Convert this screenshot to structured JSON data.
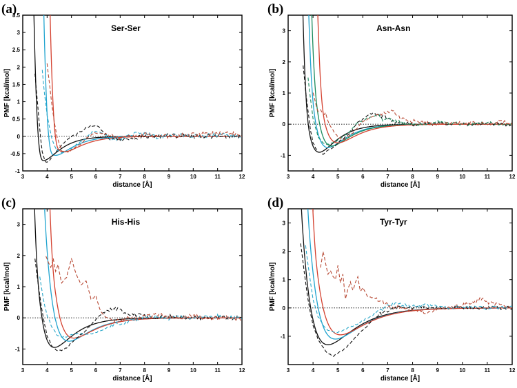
{
  "colors": {
    "black": "#111111",
    "cyan": "#1fa3cf",
    "green": "#1a8a5c",
    "red": "#d4402e",
    "dashed_red": "#b84a35",
    "dashed_cyan": "#2aa7c9",
    "dashed_black": "#111111"
  },
  "chart_data": [
    {
      "panel": "(a)",
      "title": "Ser-Ser",
      "type": "line",
      "xlabel": "distance [Å]",
      "ylabel": "PMF [kcal/mol]",
      "xlim": [
        3,
        12
      ],
      "ylim": [
        -1,
        3.5
      ],
      "xticks": [
        3,
        4,
        5,
        6,
        7,
        8,
        9,
        10,
        11,
        12
      ],
      "yticks": [
        "3.5",
        "3",
        "2.5",
        "2",
        "1.5",
        "1",
        "0.5",
        "0",
        "-0.5",
        "-1"
      ],
      "zero_line": true,
      "series": [
        {
          "name": "black model",
          "color": "black",
          "style": "solid",
          "wall": 3.45,
          "rmin": 3.85,
          "depth": 0.7,
          "width": 1.4
        },
        {
          "name": "cyan model",
          "color": "cyan",
          "style": "solid",
          "wall": 3.85,
          "rmin": 4.35,
          "depth": 0.55,
          "width": 1.5
        },
        {
          "name": "red model",
          "color": "red",
          "style": "solid",
          "wall": 4.1,
          "rmin": 4.7,
          "depth": 0.45,
          "width": 1.6
        },
        {
          "name": "black reference",
          "color": "dashed_black",
          "style": "dashed",
          "x": [
            3.5,
            3.6,
            3.7,
            3.8,
            3.9,
            4.0,
            4.2,
            4.4,
            4.6,
            4.8,
            5.0,
            5.2,
            5.4,
            5.6,
            5.8,
            6.0,
            6.2,
            6.4,
            6.6,
            6.8,
            7.0,
            7.5,
            8.0,
            9.0,
            10.0,
            11.0,
            12.0
          ],
          "y": [
            1.8,
            1.0,
            0.2,
            -0.45,
            -0.7,
            -0.75,
            -0.6,
            -0.4,
            -0.25,
            -0.1,
            0.0,
            0.05,
            0.15,
            0.25,
            0.3,
            0.32,
            0.22,
            0.05,
            -0.08,
            -0.05,
            -0.1,
            -0.05,
            0.0,
            0.02,
            0.0,
            0.0,
            0.0
          ]
        },
        {
          "name": "cyan reference",
          "color": "dashed_cyan",
          "style": "dashed",
          "x": [
            3.8,
            3.9,
            4.0,
            4.2,
            4.4,
            4.6,
            4.8,
            5.0,
            5.2,
            5.4,
            5.6,
            5.8,
            6.0,
            6.2,
            6.4,
            6.6,
            7.0,
            7.5,
            8.0,
            8.5,
            9.0,
            10.0,
            11.0,
            12.0
          ],
          "y": [
            1.9,
            1.2,
            0.6,
            -0.1,
            -0.4,
            -0.45,
            -0.4,
            -0.35,
            -0.25,
            -0.15,
            -0.05,
            0.1,
            0.15,
            0.1,
            0.05,
            -0.1,
            -0.05,
            0.05,
            0.1,
            -0.05,
            0.05,
            0.0,
            0.05,
            0.0
          ]
        },
        {
          "name": "red reference",
          "color": "dashed_red",
          "style": "dashed",
          "x": [
            4.0,
            4.1,
            4.2,
            4.3,
            4.4,
            4.5,
            4.6,
            4.8,
            5.0,
            5.2,
            5.4,
            5.6,
            5.8,
            6.0,
            6.5,
            7.0,
            7.5,
            8.0,
            9.0,
            10.0,
            11.0,
            11.5,
            12.0
          ],
          "y": [
            2.1,
            1.5,
            0.9,
            0.4,
            0.0,
            -0.2,
            -0.4,
            -0.45,
            -0.4,
            -0.3,
            -0.2,
            -0.05,
            0.05,
            0.1,
            0.05,
            -0.05,
            0.0,
            0.05,
            0.0,
            0.05,
            0.1,
            0.1,
            0.0
          ]
        }
      ]
    },
    {
      "panel": "(b)",
      "title": "Asn-Asn",
      "type": "line",
      "xlabel": "distance [Å]",
      "ylabel": "PMF [kcal/mol]",
      "xlim": [
        3,
        12
      ],
      "ylim": [
        -1.5,
        3.5
      ],
      "xticks": [
        3,
        4,
        5,
        6,
        7,
        8,
        9,
        10,
        11,
        12
      ],
      "yticks": [
        "3",
        "2",
        "1",
        "0",
        "-1"
      ],
      "zero_line": true,
      "series": [
        {
          "name": "black model",
          "color": "black",
          "style": "solid",
          "wall": 3.5,
          "rmin": 4.25,
          "depth": 0.9,
          "width": 1.5
        },
        {
          "name": "cyan model",
          "color": "cyan",
          "style": "solid",
          "wall": 3.7,
          "rmin": 4.6,
          "depth": 0.75,
          "width": 1.6
        },
        {
          "name": "green model",
          "color": "green",
          "style": "solid",
          "wall": 3.8,
          "rmin": 4.75,
          "depth": 0.7,
          "width": 1.6
        },
        {
          "name": "red model",
          "color": "red",
          "style": "solid",
          "wall": 4.1,
          "rmin": 5.0,
          "depth": 0.6,
          "width": 1.7
        },
        {
          "name": "black reference",
          "color": "dashed_black",
          "style": "dashed",
          "x": [
            3.6,
            3.7,
            3.8,
            3.9,
            4.0,
            4.2,
            4.4,
            4.6,
            4.8,
            5.0,
            5.2,
            5.4,
            5.6,
            5.8,
            6.0,
            6.2,
            6.4,
            6.6,
            6.8,
            7.0,
            7.2,
            7.5,
            8.0,
            9.0,
            10.0,
            11.0,
            12.0
          ],
          "y": [
            1.9,
            1.1,
            0.4,
            -0.2,
            -0.6,
            -0.9,
            -0.95,
            -0.85,
            -0.75,
            -0.6,
            -0.45,
            -0.35,
            -0.15,
            0.05,
            0.15,
            0.3,
            0.35,
            0.3,
            0.25,
            0.2,
            0.1,
            0.05,
            0.0,
            0.02,
            0.0,
            0.0,
            0.0
          ]
        },
        {
          "name": "green reference",
          "color": "green",
          "style": "dashed",
          "x": [
            3.8,
            3.9,
            4.0,
            4.2,
            4.4,
            4.6,
            4.8,
            5.0,
            5.2,
            5.4,
            5.6,
            5.8,
            6.0,
            6.2,
            6.4,
            6.6,
            6.8,
            7.0,
            7.5,
            8.0,
            9.0,
            10.0,
            11.0,
            12.0
          ],
          "y": [
            1.5,
            0.8,
            0.2,
            -0.4,
            -0.6,
            -0.65,
            -0.6,
            -0.5,
            -0.4,
            -0.3,
            -0.1,
            0.05,
            0.1,
            0.2,
            0.25,
            0.3,
            0.15,
            0.2,
            0.05,
            0.0,
            0.05,
            0.0,
            0.05,
            0.0
          ]
        },
        {
          "name": "red reference",
          "color": "dashed_red",
          "style": "dashed",
          "x": [
            4.0,
            4.1,
            4.2,
            4.3,
            4.4,
            4.5,
            4.6,
            4.8,
            5.0,
            5.2,
            5.5,
            5.8,
            6.0,
            6.3,
            6.6,
            7.0,
            7.2,
            7.5,
            8.0,
            8.5,
            9.0,
            10.0,
            11.0,
            11.5,
            12.0
          ],
          "y": [
            1.0,
            0.7,
            0.4,
            0.45,
            0.3,
            0.35,
            0.1,
            -0.2,
            -0.4,
            -0.5,
            -0.35,
            -0.1,
            0.1,
            0.2,
            0.3,
            0.4,
            0.45,
            0.2,
            0.1,
            0.05,
            0.0,
            0.05,
            0.0,
            0.1,
            0.0
          ]
        }
      ]
    },
    {
      "panel": "(c)",
      "title": "His-His",
      "type": "line",
      "xlabel": "distance [Å]",
      "ylabel": "PMF [kcal/mol]",
      "xlim": [
        3,
        12
      ],
      "ylim": [
        -1.5,
        3.5
      ],
      "xticks": [
        3,
        4,
        5,
        6,
        7,
        8,
        9,
        10,
        11,
        12
      ],
      "yticks": [
        "3",
        "2",
        "1",
        "0",
        "-1"
      ],
      "zero_line": true,
      "series": [
        {
          "name": "black model",
          "color": "black",
          "style": "solid",
          "wall": 3.3,
          "rmin": 4.3,
          "depth": 0.95,
          "width": 1.7
        },
        {
          "name": "cyan model",
          "color": "cyan",
          "style": "solid",
          "wall": 3.6,
          "rmin": 4.9,
          "depth": 0.75,
          "width": 1.9
        },
        {
          "name": "red model",
          "color": "red",
          "style": "solid",
          "wall": 3.95,
          "rmin": 5.1,
          "depth": 0.65,
          "width": 1.9
        },
        {
          "name": "black reference",
          "color": "dashed_black",
          "style": "dashed",
          "x": [
            3.5,
            3.6,
            3.7,
            3.8,
            3.9,
            4.0,
            4.2,
            4.4,
            4.6,
            4.8,
            5.0,
            5.3,
            5.6,
            5.9,
            6.2,
            6.5,
            6.8,
            7.0,
            7.3,
            7.6,
            8.0,
            8.5,
            9.0,
            10.0,
            11.0,
            12.0
          ],
          "y": [
            1.9,
            1.3,
            0.7,
            0.2,
            -0.2,
            -0.6,
            -0.9,
            -1.05,
            -1.05,
            -0.95,
            -0.8,
            -0.6,
            -0.4,
            -0.15,
            0.1,
            0.25,
            0.3,
            0.25,
            0.15,
            0.1,
            0.05,
            0.0,
            0.05,
            0.0,
            0.0,
            0.0
          ]
        },
        {
          "name": "cyan reference",
          "color": "dashed_cyan",
          "style": "dashed",
          "x": [
            3.7,
            3.8,
            3.9,
            4.0,
            4.2,
            4.4,
            4.6,
            4.8,
            5.0,
            5.3,
            5.6,
            5.9,
            6.2,
            6.5,
            6.8,
            7.2,
            7.6,
            8.0,
            8.5,
            9.0,
            9.5,
            10.0,
            11.0,
            12.0
          ],
          "y": [
            1.3,
            0.8,
            0.4,
            0.1,
            -0.3,
            -0.55,
            -0.6,
            -0.6,
            -0.55,
            -0.5,
            -0.55,
            -0.5,
            -0.4,
            -0.3,
            -0.2,
            -0.15,
            -0.05,
            0.0,
            0.05,
            -0.05,
            0.05,
            0.0,
            0.05,
            0.0
          ]
        },
        {
          "name": "red reference",
          "color": "dashed_red",
          "style": "dashed",
          "x": [
            3.95,
            4.05,
            4.15,
            4.25,
            4.35,
            4.45,
            4.6,
            4.8,
            5.0,
            5.2,
            5.4,
            5.6,
            5.8,
            6.0,
            6.2,
            6.4,
            6.7,
            7.0,
            7.5,
            8.0,
            8.5,
            9.0,
            9.5,
            10.0,
            10.5,
            11.0,
            11.5,
            12.0
          ],
          "y": [
            2.0,
            1.8,
            1.6,
            1.9,
            1.5,
            1.7,
            1.1,
            1.3,
            1.9,
            1.4,
            1.05,
            1.2,
            0.6,
            0.7,
            0.2,
            0.05,
            -0.1,
            -0.05,
            0.0,
            0.05,
            0.1,
            0.05,
            0.0,
            0.1,
            -0.05,
            0.0,
            0.05,
            -0.1
          ]
        }
      ]
    },
    {
      "panel": "(d)",
      "title": "Tyr-Tyr",
      "type": "line",
      "xlabel": "distance [Å]",
      "ylabel": "PMF [kcal/mol]",
      "xlim": [
        3,
        12
      ],
      "ylim": [
        -2,
        3.5
      ],
      "xticks": [
        3,
        4,
        5,
        6,
        7,
        8,
        9,
        10,
        11,
        12
      ],
      "yticks": [
        "3",
        "2",
        "1",
        "0",
        "-1"
      ],
      "zero_line": true,
      "series": [
        {
          "name": "black model",
          "color": "black",
          "style": "solid",
          "wall": 3.25,
          "rmin": 4.6,
          "depth": 1.3,
          "width": 2.3
        },
        {
          "name": "cyan model",
          "color": "cyan",
          "style": "solid",
          "wall": 3.5,
          "rmin": 4.9,
          "depth": 1.1,
          "width": 2.3
        },
        {
          "name": "red model",
          "color": "red",
          "style": "solid",
          "wall": 3.8,
          "rmin": 5.1,
          "depth": 0.95,
          "width": 2.3
        },
        {
          "name": "black reference",
          "color": "dashed_black",
          "style": "dashed",
          "x": [
            3.5,
            3.6,
            3.7,
            3.8,
            3.9,
            4.0,
            4.2,
            4.4,
            4.6,
            4.8,
            5.0,
            5.2,
            5.5,
            5.8,
            6.1,
            6.4,
            6.7,
            7.0,
            7.3,
            7.6,
            8.0,
            8.5,
            9.0,
            10.0,
            11.0,
            12.0
          ],
          "y": [
            2.3,
            1.6,
            0.9,
            0.3,
            -0.2,
            -0.6,
            -1.1,
            -1.4,
            -1.6,
            -1.7,
            -1.6,
            -1.5,
            -1.25,
            -0.95,
            -0.7,
            -0.4,
            -0.2,
            -0.1,
            0.0,
            0.05,
            0.0,
            0.05,
            0.0,
            0.0,
            0.0,
            0.0
          ]
        },
        {
          "name": "cyan reference",
          "color": "dashed_cyan",
          "style": "dashed",
          "x": [
            3.7,
            3.8,
            3.9,
            4.0,
            4.2,
            4.4,
            4.6,
            4.8,
            5.0,
            5.3,
            5.6,
            5.9,
            6.2,
            6.5,
            6.8,
            7.0,
            7.3,
            7.6,
            8.0,
            8.5,
            9.0,
            9.5,
            10.0,
            11.0,
            12.0
          ],
          "y": [
            2.2,
            1.5,
            0.9,
            0.3,
            -0.3,
            -0.6,
            -0.8,
            -0.85,
            -0.85,
            -0.75,
            -0.65,
            -0.5,
            -0.35,
            -0.2,
            -0.05,
            0.1,
            0.15,
            0.1,
            0.05,
            0.1,
            0.05,
            0.0,
            0.05,
            0.0,
            0.05
          ]
        },
        {
          "name": "red reference",
          "color": "dashed_red",
          "style": "dashed",
          "x": [
            4.3,
            4.4,
            4.5,
            4.6,
            4.7,
            4.8,
            4.9,
            5.0,
            5.1,
            5.2,
            5.3,
            5.4,
            5.5,
            5.6,
            5.7,
            5.8,
            5.9,
            6.0,
            6.2,
            6.5,
            6.8,
            7.0,
            7.5,
            8.0,
            8.5,
            9.0,
            9.5,
            10.0,
            10.5,
            10.8,
            11.0,
            11.5,
            12.0
          ],
          "y": [
            1.4,
            2.0,
            1.6,
            1.2,
            1.3,
            1.1,
            1.0,
            1.5,
            0.9,
            1.2,
            0.3,
            0.7,
            0.9,
            0.6,
            0.9,
            1.1,
            0.6,
            0.7,
            0.4,
            0.35,
            0.2,
            0.1,
            0.0,
            -0.1,
            -0.15,
            -0.05,
            0.0,
            0.1,
            0.2,
            0.35,
            0.2,
            0.1,
            0.0
          ]
        }
      ]
    }
  ]
}
